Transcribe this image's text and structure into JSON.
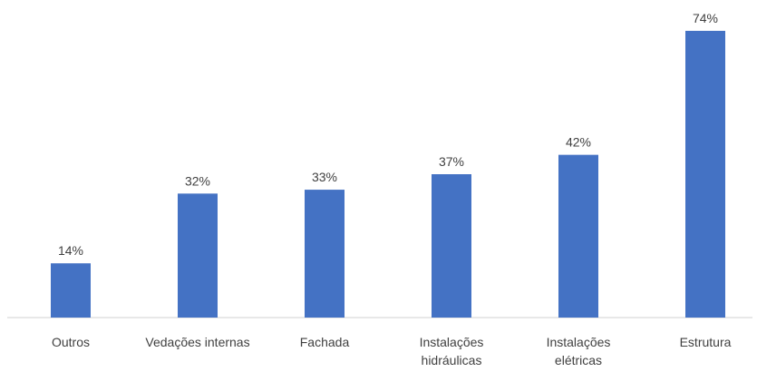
{
  "chart_data": {
    "type": "bar",
    "categories": [
      [
        "Outros"
      ],
      [
        "Vedações internas"
      ],
      [
        "Fachada"
      ],
      [
        "Instalações",
        "hidráulicas"
      ],
      [
        "Instalações",
        "elétricas"
      ],
      [
        "Estrutura"
      ]
    ],
    "values": [
      14,
      32,
      33,
      37,
      42,
      74
    ],
    "value_labels": [
      "14%",
      "32%",
      "33%",
      "37%",
      "42%",
      "74%"
    ],
    "unit": "%",
    "ylim": [
      0,
      74
    ],
    "grid": false,
    "legend": "none",
    "title": "",
    "xlabel": "",
    "ylabel": "",
    "colors": {
      "bar": "#4472C4",
      "text": "#404040",
      "axis": "#d0d0d0"
    }
  }
}
